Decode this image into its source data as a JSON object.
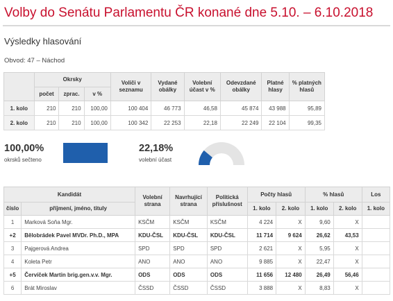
{
  "page": {
    "title": "Volby do Senátu Parlamentu ČR konané dne 5.10. – 6.10.2018",
    "subtitle": "Výsledky hlasování",
    "district": "Obvod: 47 – Náchod"
  },
  "summary": {
    "headers": {
      "okrsky": "Okrsky",
      "pocet": "počet",
      "zprac": "zprac.",
      "v_pct": "v %",
      "volici": "Voliči v seznamu",
      "vydane": "Vydané obálky",
      "ucast": "Volební účast v %",
      "odevzdane": "Odevzdané obálky",
      "platne": "Platné hlasy",
      "pct_platnych": "% platných hlasů"
    },
    "rows": [
      {
        "label": "1. kolo",
        "pocet": "210",
        "zprac": "210",
        "v_pct": "100,00",
        "volici": "100 404",
        "vydane": "46 773",
        "ucast": "46,58",
        "odevzdane": "45 874",
        "platne": "43 988",
        "pct_platnych": "95,89"
      },
      {
        "label": "2. kolo",
        "pocet": "210",
        "zprac": "210",
        "v_pct": "100,00",
        "volici": "100 342",
        "vydane": "22 253",
        "ucast": "22,18",
        "odevzdane": "22 249",
        "platne": "22 104",
        "pct_platnych": "99,35"
      }
    ]
  },
  "stats": {
    "counted_pct": "100,00%",
    "counted_label": "okrsků sečteno",
    "counted_fraction": 1.0,
    "turnout_pct": "22,18%",
    "turnout_label": "volební účast",
    "turnout_fraction": 0.2218
  },
  "colors": {
    "title": "#c8102e",
    "accent": "#1f5fac",
    "gauge_bg": "#e4e4e4"
  },
  "candidates": {
    "headers": {
      "kandidat": "Kandidát",
      "cislo": "číslo",
      "jmeno": "příjmení, jméno, tituly",
      "volebni_strana": "Volební strana",
      "navrhujici_strana": "Navrhující strana",
      "prislusnost": "Politická příslušnost",
      "pocty_hlasu": "Počty hlasů",
      "pct_hlasu": "% hlasů",
      "los": "Los",
      "kolo1": "1. kolo",
      "kolo2": "2. kolo"
    },
    "rows": [
      {
        "cislo": "1",
        "jmeno": "Marková Soňa Mgr.",
        "volebni": "KSČM",
        "navrhujici": "KSČM",
        "prislusnost": "KSČM",
        "hlasy1": "4 224",
        "hlasy2": "X",
        "pct1": "9,60",
        "pct2": "X",
        "los": "",
        "bold": false
      },
      {
        "cislo": "+2",
        "jmeno": "Bělobrádek Pavel MVDr. Ph.D., MPA",
        "volebni": "KDU-ČSL",
        "navrhujici": "KDU-ČSL",
        "prislusnost": "KDU-ČSL",
        "hlasy1": "11 714",
        "hlasy2": "9 624",
        "pct1": "26,62",
        "pct2": "43,53",
        "los": "",
        "bold": true
      },
      {
        "cislo": "3",
        "jmeno": "Pajgerová Andrea",
        "volebni": "SPD",
        "navrhujici": "SPD",
        "prislusnost": "SPD",
        "hlasy1": "2 621",
        "hlasy2": "X",
        "pct1": "5,95",
        "pct2": "X",
        "los": "",
        "bold": false
      },
      {
        "cislo": "4",
        "jmeno": "Koleta Petr",
        "volebni": "ANO",
        "navrhujici": "ANO",
        "prislusnost": "ANO",
        "hlasy1": "9 885",
        "hlasy2": "X",
        "pct1": "22,47",
        "pct2": "X",
        "los": "",
        "bold": false
      },
      {
        "cislo": "+5",
        "jmeno": "Červíček Martin brig.gen.v.v. Mgr.",
        "volebni": "ODS",
        "navrhujici": "ODS",
        "prislusnost": "ODS",
        "hlasy1": "11 656",
        "hlasy2": "12 480",
        "pct1": "26,49",
        "pct2": "56,46",
        "los": "",
        "bold": true
      },
      {
        "cislo": "6",
        "jmeno": "Brát Miroslav",
        "volebni": "ČSSD",
        "navrhujici": "ČSSD",
        "prislusnost": "ČSSD",
        "hlasy1": "3 888",
        "hlasy2": "X",
        "pct1": "8,83",
        "pct2": "X",
        "los": "",
        "bold": false
      }
    ]
  }
}
